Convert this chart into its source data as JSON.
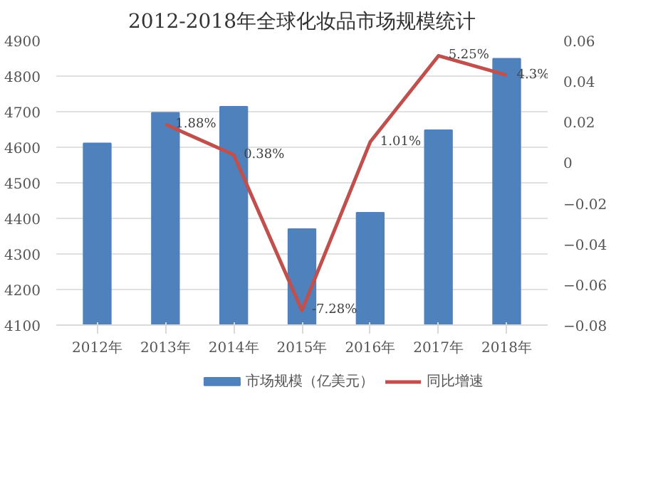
{
  "chart_data": {
    "type": "bar",
    "title": "2012-2018年全球化妆品市场规模统计",
    "categories": [
      "2012年",
      "2013年",
      "2014年",
      "2015年",
      "2016年",
      "2017年",
      "2018年"
    ],
    "series": [
      {
        "name": "市场规模（亿美元）",
        "color": "#4f81bd",
        "values": [
          4611,
          4697,
          4714,
          4370,
          4416,
          4648,
          4849
        ]
      },
      {
        "name": "同比增速",
        "type": "line",
        "axis": "y2",
        "color": "#c0504d",
        "values": [
          null,
          0.0188,
          0.0038,
          -0.0728,
          0.0101,
          0.0525,
          0.043
        ],
        "value_labels": [
          null,
          "1.88%",
          "0.38%",
          "-7.28%",
          "1.01%",
          "5.25%",
          "4.3%"
        ]
      }
    ],
    "ylim": [
      4100,
      4900
    ],
    "yticks": [
      4100,
      4200,
      4300,
      4400,
      4500,
      4600,
      4700,
      4800,
      4900
    ],
    "y2lim": [
      -0.08,
      0.06
    ],
    "y2ticks": [
      -0.08,
      -0.06,
      -0.04,
      -0.02,
      0,
      0.02,
      0.04,
      0.06
    ],
    "grid": "y",
    "legend": "bottom",
    "line_style": "solid",
    "marker": "none"
  }
}
